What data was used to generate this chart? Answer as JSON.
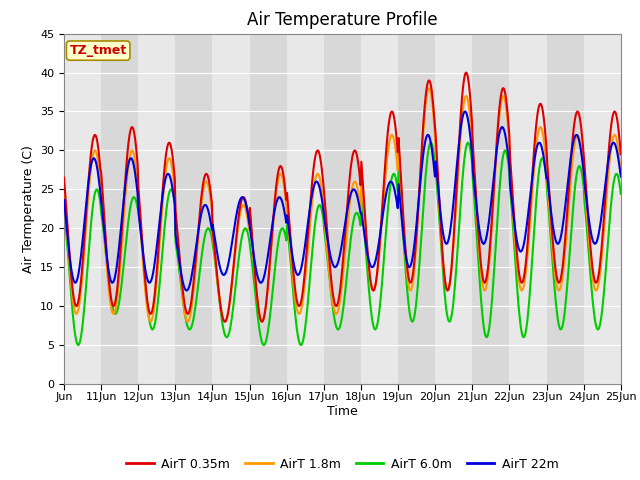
{
  "title": "Air Temperature Profile",
  "xlabel": "Time",
  "ylabel": "Air Termperature (C)",
  "ylim": [
    0,
    45
  ],
  "series_colors": [
    "#dd0000",
    "#ff9900",
    "#00cc00",
    "#0000dd"
  ],
  "series_labels": [
    "AirT 0.35m",
    "AirT 1.8m",
    "AirT 6.0m",
    "AirT 22m"
  ],
  "annotation_text": "TZ_tmet",
  "annotation_color": "#cc0000",
  "annotation_bg": "#ffffcc",
  "annotation_edge": "#aa8800",
  "plot_bg_light": "#e8e8e8",
  "plot_bg_dark": "#d8d8d8",
  "title_fontsize": 12,
  "axis_fontsize": 9,
  "tick_fontsize": 8,
  "legend_fontsize": 9,
  "linewidth": 1.5,
  "day_peaks_035": [
    32,
    33,
    31,
    27,
    24,
    28,
    30,
    30,
    35,
    39,
    40,
    38,
    36,
    35,
    35
  ],
  "day_troughs_035": [
    10,
    10,
    9,
    9,
    8,
    8,
    10,
    10,
    12,
    13,
    12,
    13,
    13,
    13,
    13
  ],
  "day_peaks_18": [
    30,
    30,
    29,
    26,
    23,
    27,
    27,
    26,
    32,
    38,
    37,
    37,
    33,
    32,
    32
  ],
  "day_troughs_18": [
    9,
    9,
    8,
    8,
    8,
    8,
    9,
    9,
    12,
    12,
    12,
    12,
    12,
    12,
    12
  ],
  "day_peaks_60": [
    25,
    24,
    25,
    20,
    20,
    20,
    23,
    22,
    27,
    31,
    31,
    30,
    29,
    28,
    27
  ],
  "day_troughs_60": [
    5,
    9,
    7,
    7,
    6,
    5,
    5,
    7,
    7,
    8,
    8,
    6,
    6,
    7,
    7
  ],
  "day_peaks_22m": [
    29,
    29,
    27,
    23,
    24,
    24,
    26,
    25,
    26,
    32,
    35,
    33,
    31,
    32,
    31
  ],
  "day_troughs_22m": [
    13,
    13,
    13,
    12,
    14,
    13,
    14,
    15,
    15,
    15,
    18,
    18,
    17,
    18,
    18
  ],
  "n_days": 15,
  "pts_per_day": 48
}
